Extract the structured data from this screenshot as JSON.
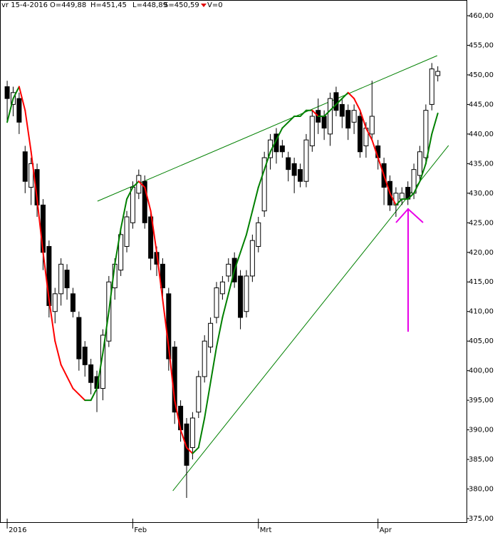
{
  "header": {
    "date": "vr 15-4-2016",
    "open": "O=449,88",
    "high": "H=451,45",
    "low": "L=448,89",
    "close": "S=450,59",
    "volume": "V=0"
  },
  "chart_data": {
    "type": "candlestick",
    "categories": [
      "2016",
      null,
      null,
      null,
      null,
      null,
      null,
      null,
      null,
      null,
      null,
      null,
      null,
      null,
      null,
      null,
      null,
      null,
      null,
      null,
      null,
      "Feb",
      null,
      null,
      null,
      null,
      null,
      null,
      null,
      null,
      null,
      null,
      null,
      null,
      null,
      null,
      null,
      null,
      null,
      null,
      null,
      null,
      "Mrt",
      null,
      null,
      null,
      null,
      null,
      null,
      null,
      null,
      null,
      null,
      null,
      null,
      null,
      null,
      null,
      null,
      null,
      null,
      null,
      "Apr",
      null,
      null,
      null,
      null,
      null,
      null,
      null,
      null,
      null,
      null
    ],
    "open": [
      448,
      445,
      446,
      437,
      431,
      434,
      428,
      421,
      410,
      413,
      417,
      413,
      409,
      404,
      401,
      399,
      397,
      405,
      414,
      417,
      421,
      425,
      430,
      432,
      426,
      420,
      418,
      413,
      404,
      394,
      391,
      387,
      393,
      399,
      404,
      409,
      413,
      416,
      419,
      416,
      410,
      416,
      421,
      427,
      436,
      440,
      438,
      436,
      435,
      434,
      432,
      438,
      444,
      443,
      440,
      447,
      445,
      444,
      442,
      443,
      438,
      440,
      438,
      435,
      432,
      428,
      429,
      431,
      430,
      433,
      436,
      445,
      449.88
    ],
    "high": [
      449,
      448,
      447,
      438,
      436,
      435,
      429,
      422,
      414,
      419,
      418,
      414,
      410,
      405,
      402,
      400,
      407,
      416,
      419,
      424,
      427,
      432,
      434,
      433,
      427,
      421,
      419,
      414,
      405,
      395,
      392,
      393,
      400,
      406,
      409,
      415,
      416,
      419,
      420,
      417,
      417,
      423,
      426,
      437,
      440,
      441,
      439,
      437,
      436,
      435,
      440,
      444,
      446,
      444,
      447,
      448,
      446,
      445,
      445,
      444,
      442,
      449,
      439,
      436,
      433,
      431,
      431,
      432,
      435,
      438,
      445,
      452,
      451.45
    ],
    "low": [
      442,
      443,
      440,
      430,
      428,
      426,
      417,
      409,
      408,
      411,
      412,
      409,
      400,
      399,
      396,
      393,
      395,
      404,
      412,
      416,
      420,
      424,
      429,
      424,
      417,
      416,
      412,
      400,
      391,
      388,
      378.5,
      385,
      392,
      398,
      403,
      408,
      412,
      415,
      414,
      407,
      409,
      415,
      420,
      426,
      434,
      435,
      436,
      432,
      430,
      431,
      431,
      437,
      440,
      439,
      438,
      443,
      441,
      439,
      440,
      436,
      436,
      439,
      434,
      428,
      427,
      426,
      428,
      428,
      429,
      432,
      435,
      444,
      448.89
    ],
    "close": [
      446,
      447,
      442,
      432,
      435,
      428,
      420,
      411,
      413,
      418,
      414,
      410,
      402,
      401,
      398,
      397,
      406,
      415,
      418,
      423,
      426,
      431,
      433,
      425,
      419,
      418,
      414,
      402,
      393,
      390,
      384,
      392,
      399,
      405,
      408,
      414,
      415,
      418,
      415,
      409,
      416,
      422,
      425,
      436,
      439,
      437,
      437,
      434,
      433,
      432,
      439,
      443,
      442,
      441,
      446,
      444,
      443,
      441,
      444,
      437,
      441,
      443,
      436,
      431,
      428,
      430,
      430,
      429,
      434,
      437,
      444,
      451,
      450.59
    ],
    "ma": [
      442,
      446,
      448,
      444,
      437,
      429,
      420,
      412,
      405,
      401,
      399,
      397,
      396,
      395,
      395,
      397,
      403,
      410,
      418,
      424,
      429,
      431,
      432,
      431,
      427,
      420,
      412,
      404,
      395,
      390,
      387,
      386,
      387,
      392,
      398,
      404,
      409,
      413,
      417,
      420,
      423,
      427,
      431,
      434,
      437,
      439,
      441,
      442,
      443,
      443,
      444,
      444,
      443,
      443,
      444,
      445,
      446,
      447,
      446,
      444,
      441,
      439,
      436,
      433,
      430,
      428,
      429,
      429,
      430,
      432,
      435,
      440,
      443.5
    ],
    "ma_up_color": "#008000",
    "ma_down_color": "#ff0000",
    "trendlines": [
      {
        "x": [
          15.1,
          71.9
        ],
        "y": [
          428.65,
          453.25
        ],
        "color": "#008000"
      },
      {
        "x": [
          27.7,
          73.8
        ],
        "y": [
          379.7,
          438.06
        ],
        "color": "#008000"
      }
    ],
    "xlim": [
      -1.2,
      76.8
    ],
    "ylim": [
      375,
      460
    ],
    "yticks": [
      {
        "value": 375,
        "label": "375,00"
      },
      {
        "value": 380,
        "label": "380,00"
      },
      {
        "value": 385,
        "label": "385,00"
      },
      {
        "value": 390,
        "label": "390,00"
      },
      {
        "value": 395,
        "label": "395,00"
      },
      {
        "value": 400,
        "label": "400,00"
      },
      {
        "value": 405,
        "label": "405,00"
      },
      {
        "value": 410,
        "label": "410,00"
      },
      {
        "value": 415,
        "label": "415,00"
      },
      {
        "value": 420,
        "label": "420,00"
      },
      {
        "value": 425,
        "label": "425,00"
      },
      {
        "value": 430,
        "label": "430,00"
      },
      {
        "value": 435,
        "label": "435,00"
      },
      {
        "value": 440,
        "label": "440,00"
      },
      {
        "value": 445,
        "label": "445,00"
      },
      {
        "value": 450,
        "label": "450,00"
      },
      {
        "value": 455,
        "label": "455,00"
      },
      {
        "value": 460,
        "label": "460,00"
      }
    ],
    "grid": false
  }
}
